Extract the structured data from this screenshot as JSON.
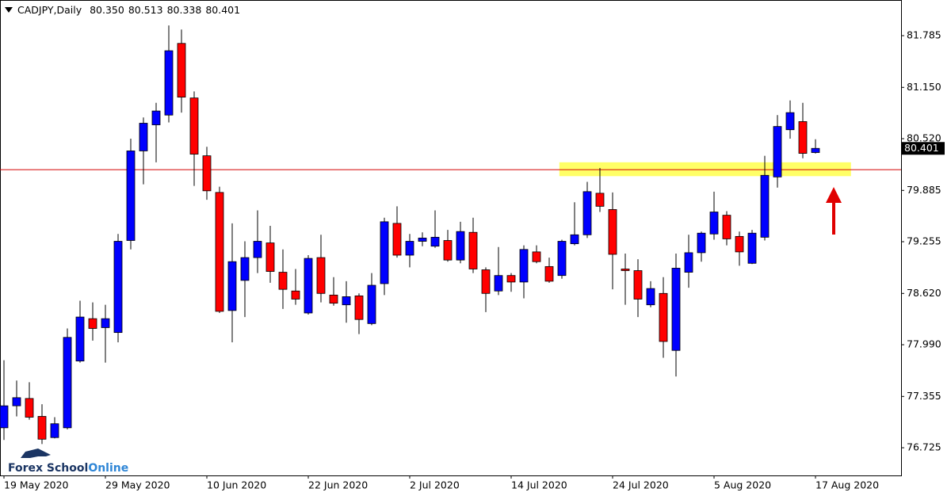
{
  "chart_data": {
    "type": "candlestick",
    "title": "CADJPY,Daily",
    "header_labels": [
      "80.350",
      "80.513",
      "80.338",
      "80.401"
    ],
    "categories": [
      "19 May 2020",
      null,
      null,
      null,
      null,
      null,
      null,
      null,
      "29 May 2020",
      null,
      null,
      null,
      null,
      null,
      null,
      null,
      "10 Jun 2020",
      null,
      null,
      null,
      null,
      null,
      null,
      null,
      "22 Jun 2020",
      null,
      null,
      null,
      null,
      null,
      null,
      null,
      "2 Jul 2020",
      null,
      null,
      null,
      null,
      null,
      null,
      null,
      "14 Jul 2020",
      null,
      null,
      null,
      null,
      null,
      null,
      null,
      "24 Jul 2020",
      null,
      null,
      null,
      null,
      null,
      null,
      null,
      "5 Aug 2020",
      null,
      null,
      null,
      null,
      null,
      null,
      null,
      "17 Aug 2020"
    ],
    "open": [
      76.97,
      77.24,
      77.33,
      77.11,
      76.85,
      76.97,
      77.79,
      78.31,
      78.2,
      78.14,
      79.27,
      80.37,
      80.69,
      80.81,
      81.69,
      81.02,
      80.31,
      79.86,
      78.41,
      78.78,
      79.06,
      79.24,
      78.88,
      78.65,
      78.38,
      79.06,
      78.6,
      78.48,
      78.59,
      78.25,
      78.74,
      79.48,
      79.09,
      79.26,
      79.2,
      79.27,
      79.03,
      79.37,
      78.91,
      78.65,
      78.84,
      78.76,
      79.13,
      78.95,
      78.84,
      79.23,
      79.34,
      79.85,
      79.65,
      78.92,
      78.9,
      78.48,
      78.62,
      77.92,
      78.88,
      79.12,
      79.35,
      79.58,
      79.32,
      78.99,
      79.31,
      80.05,
      80.63,
      80.73,
      80.35
    ],
    "high": [
      77.8,
      77.55,
      77.53,
      77.26,
      77.1,
      78.19,
      78.53,
      78.51,
      78.48,
      79.35,
      80.52,
      80.78,
      80.96,
      81.91,
      81.86,
      81.1,
      80.42,
      79.93,
      79.48,
      79.26,
      79.64,
      79.45,
      79.16,
      78.92,
      79.09,
      79.34,
      78.82,
      78.77,
      78.62,
      78.87,
      79.55,
      79.69,
      79.35,
      79.37,
      79.64,
      79.4,
      79.5,
      79.55,
      78.94,
      79.19,
      78.87,
      79.21,
      79.21,
      79.06,
      79.28,
      79.74,
      79.99,
      80.16,
      79.86,
      79.11,
      79.04,
      78.77,
      78.82,
      79.11,
      79.34,
      79.38,
      79.87,
      79.63,
      79.38,
      79.4,
      80.31,
      80.81,
      80.99,
      80.96,
      80.513
    ],
    "low": [
      76.82,
      77.11,
      77.07,
      76.77,
      76.84,
      76.95,
      77.77,
      78.04,
      77.77,
      78.02,
      79.16,
      79.96,
      80.23,
      80.72,
      80.84,
      79.94,
      79.77,
      78.38,
      78.02,
      78.33,
      78.87,
      78.75,
      78.43,
      78.48,
      78.36,
      78.51,
      78.47,
      78.26,
      78.12,
      78.23,
      78.6,
      79.06,
      78.94,
      79.2,
      79.18,
      79.01,
      78.99,
      78.87,
      78.39,
      78.6,
      78.64,
      78.56,
      78.99,
      78.75,
      78.8,
      79.21,
      79.3,
      79.62,
      78.67,
      78.48,
      78.33,
      78.45,
      77.83,
      77.6,
      78.69,
      79.01,
      79.28,
      79.21,
      78.96,
      78.98,
      79.27,
      79.92,
      80.52,
      80.28,
      80.338
    ],
    "close": [
      77.24,
      77.34,
      77.1,
      76.83,
      77.02,
      78.08,
      78.33,
      78.19,
      78.31,
      79.26,
      80.37,
      80.71,
      80.86,
      81.6,
      81.03,
      80.33,
      79.88,
      78.4,
      79.01,
      79.06,
      79.26,
      78.89,
      78.67,
      78.55,
      79.05,
      78.62,
      78.5,
      78.58,
      78.3,
      78.72,
      79.5,
      79.09,
      79.26,
      79.3,
      79.31,
      79.03,
      79.38,
      78.92,
      78.62,
      78.84,
      78.76,
      79.16,
      79.01,
      78.77,
      79.26,
      79.34,
      79.87,
      79.69,
      79.1,
      78.9,
      78.55,
      78.68,
      78.03,
      78.93,
      79.12,
      79.36,
      79.62,
      79.29,
      79.13,
      79.36,
      80.07,
      80.67,
      80.84,
      80.34,
      80.401
    ],
    "up_color": "#0000ff",
    "down_color": "#ff0000",
    "ylim": [
      76.385,
      82.223
    ],
    "yticks": [
      76.725,
      77.355,
      {
        "value": 77.99,
        "label": "77.990"
      },
      {
        "value": 78.62,
        "label": "78.620"
      },
      79.255,
      79.885,
      {
        "value": 80.52,
        "label": "80.520"
      },
      {
        "value": 81.15,
        "label": "81.150"
      },
      81.785
    ],
    "current_price": {
      "value": 80.401,
      "label": "80.401"
    },
    "level_line": {
      "value": 80.14,
      "color": "#d40000"
    },
    "zone": {
      "values": [
        80.06,
        80.23
      ],
      "color": "#ffff66"
    },
    "logo_text": [
      "Forex School",
      "Online"
    ]
  }
}
